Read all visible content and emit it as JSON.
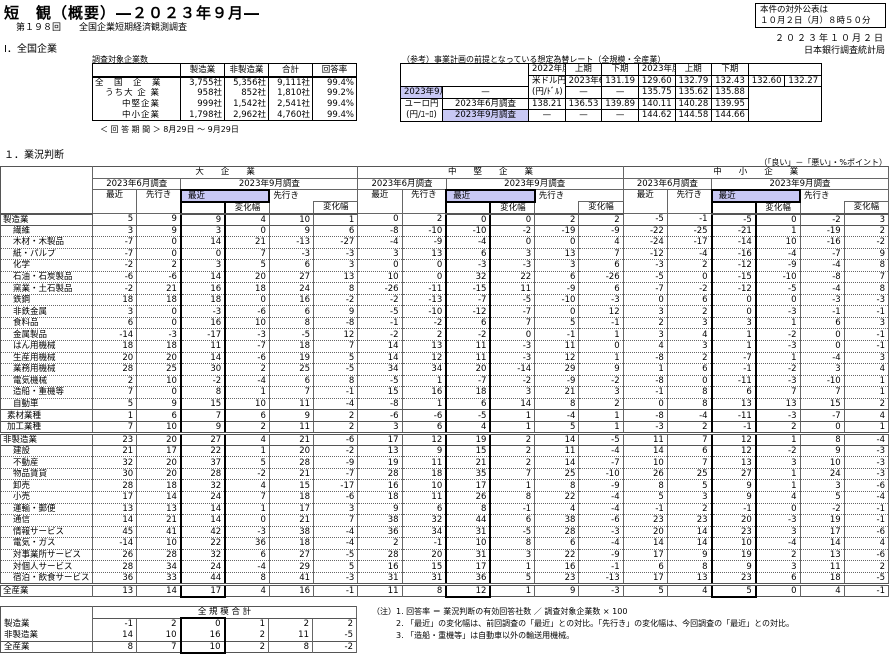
{
  "header": {
    "title": "短　観（概要）―２０２３年９月―",
    "subtitle": "第１９８回　　全国企業短期経済観測調査",
    "release_line1": "本件の対外公表は",
    "release_line2": "１０月２日（月）８時５０分",
    "date": "２０２３年１０月２日",
    "bureau": "日本銀行調査統計局"
  },
  "section1": "Ⅰ．全国企業",
  "firms": {
    "label": "調査対象企業数",
    "columns": [
      "",
      "製造業",
      "非製造業",
      "合計",
      "回答率"
    ],
    "rows": [
      [
        "全　国　企　業",
        "3,755社",
        "5,356社",
        "9,111社",
        "99.4%"
      ],
      [
        "うち大 企 業",
        "958社",
        "852社",
        "1,810社",
        "99.2%"
      ],
      [
        "中堅企業",
        "999社",
        "1,542社",
        "2,541社",
        "99.4%"
      ],
      [
        "中小企業",
        "1,798社",
        "2,962社",
        "4,760社",
        "99.4%"
      ]
    ],
    "period": "＜ 回 答 期 間 ＞ 8月29日 ～ 9月29日"
  },
  "fx": {
    "label": "（参考）事業計画の前提となっている想定為替レート（全規模・全産業）",
    "year1": "2022年度",
    "year2": "2023年度",
    "half1": "上期",
    "half2": "下期",
    "rows": [
      {
        "currency": "米ドル円",
        "unit": "(円/ﾄﾞﾙ)",
        "survey": "2023年6月調査",
        "values": [
          "131.19",
          "129.60",
          "132.79",
          "132.43",
          "132.60",
          "132.27"
        ]
      },
      {
        "survey": "2023年9月調査",
        "values": [
          "—",
          "—",
          "—",
          "135.75",
          "135.62",
          "135.88"
        ]
      },
      {
        "currency": "ユーロ円",
        "unit": "(円/ﾕｰﾛ)",
        "survey": "2023年6月調査",
        "values": [
          "138.21",
          "136.53",
          "139.89",
          "140.11",
          "140.28",
          "139.95"
        ]
      },
      {
        "survey": "2023年9月調査",
        "values": [
          "—",
          "—",
          "—",
          "144.62",
          "144.58",
          "144.66"
        ]
      }
    ]
  },
  "section2": "１．業況判断",
  "unit": "（「良い」－「悪い」・%ポイント）",
  "main": {
    "groups": [
      "大　　企　　業",
      "中　　堅　　企　　業",
      "中　　小　　企　　業"
    ],
    "surveys": [
      "2023年6月調査",
      "2023年9月調査"
    ],
    "recent": "最近",
    "forward": "先行き",
    "change": "変化幅",
    "rows": [
      {
        "label": "製造業",
        "lv": 0,
        "l": [
          5,
          9,
          9,
          4,
          10,
          1
        ],
        "m": [
          0,
          2,
          0,
          0,
          2,
          2
        ],
        "s": [
          -5,
          -1,
          -5,
          0,
          -2,
          3
        ]
      },
      {
        "label": "繊維",
        "lv": 2,
        "l": [
          3,
          9,
          3,
          0,
          9,
          6
        ],
        "m": [
          -8,
          -10,
          -10,
          -2,
          -19,
          -9
        ],
        "s": [
          -22,
          -25,
          -21,
          1,
          -19,
          2
        ]
      },
      {
        "label": "木材・木製品",
        "lv": 2,
        "l": [
          -7,
          0,
          14,
          21,
          -13,
          -27
        ],
        "m": [
          -4,
          -9,
          -4,
          0,
          0,
          4
        ],
        "s": [
          -24,
          -17,
          -14,
          10,
          -16,
          -2
        ]
      },
      {
        "label": "紙・パルプ",
        "lv": 2,
        "l": [
          -7,
          0,
          0,
          7,
          -3,
          -3
        ],
        "m": [
          3,
          13,
          6,
          3,
          13,
          7
        ],
        "s": [
          -12,
          -4,
          -16,
          -4,
          -7,
          9
        ]
      },
      {
        "label": "化学",
        "lv": 2,
        "l": [
          -2,
          2,
          3,
          5,
          6,
          3
        ],
        "m": [
          0,
          0,
          -3,
          -3,
          3,
          6
        ],
        "s": [
          -3,
          2,
          -12,
          -9,
          -4,
          8
        ]
      },
      {
        "label": "石油・石炭製品",
        "lv": 2,
        "l": [
          -6,
          -6,
          14,
          20,
          27,
          13
        ],
        "m": [
          10,
          0,
          32,
          22,
          6,
          -26
        ],
        "s": [
          -5,
          0,
          -15,
          -10,
          -8,
          7
        ]
      },
      {
        "label": "窯業・土石製品",
        "lv": 2,
        "l": [
          -2,
          21,
          16,
          18,
          24,
          8
        ],
        "m": [
          -26,
          -11,
          -15,
          11,
          -9,
          6
        ],
        "s": [
          -7,
          -2,
          -12,
          -5,
          -4,
          8
        ]
      },
      {
        "label": "鉄鋼",
        "lv": 2,
        "l": [
          18,
          18,
          18,
          0,
          16,
          -2
        ],
        "m": [
          -2,
          -13,
          -7,
          -5,
          -10,
          -3
        ],
        "s": [
          0,
          6,
          0,
          0,
          -3,
          -3
        ]
      },
      {
        "label": "非鉄金属",
        "lv": 2,
        "l": [
          3,
          0,
          -3,
          -6,
          6,
          9
        ],
        "m": [
          -5,
          -10,
          -12,
          -7,
          0,
          12
        ],
        "s": [
          3,
          2,
          0,
          -3,
          -1,
          -1
        ]
      },
      {
        "label": "食料品",
        "lv": 2,
        "l": [
          6,
          0,
          16,
          10,
          8,
          -8
        ],
        "m": [
          -1,
          -2,
          6,
          7,
          5,
          -1
        ],
        "s": [
          2,
          3,
          3,
          1,
          6,
          3
        ]
      },
      {
        "label": "金属製品",
        "lv": 2,
        "l": [
          -14,
          -3,
          -17,
          -3,
          -5,
          12
        ],
        "m": [
          -2,
          2,
          -2,
          0,
          -1,
          1
        ],
        "s": [
          3,
          4,
          1,
          -2,
          0,
          -1
        ]
      },
      {
        "label": "はん用機械",
        "lv": 2,
        "l": [
          18,
          18,
          11,
          -7,
          18,
          7
        ],
        "m": [
          14,
          13,
          11,
          -3,
          11,
          0
        ],
        "s": [
          4,
          3,
          1,
          -3,
          0,
          -1
        ]
      },
      {
        "label": "生産用機械",
        "lv": 2,
        "l": [
          20,
          20,
          14,
          -6,
          19,
          5
        ],
        "m": [
          14,
          12,
          11,
          -3,
          12,
          1
        ],
        "s": [
          -8,
          2,
          -7,
          1,
          -4,
          3
        ]
      },
      {
        "label": "業務用機械",
        "lv": 2,
        "l": [
          28,
          25,
          30,
          2,
          25,
          -5
        ],
        "m": [
          34,
          34,
          20,
          -14,
          29,
          9
        ],
        "s": [
          1,
          6,
          -1,
          -2,
          3,
          4
        ]
      },
      {
        "label": "電気機械",
        "lv": 2,
        "l": [
          2,
          10,
          -2,
          -4,
          6,
          8
        ],
        "m": [
          -5,
          1,
          -7,
          -2,
          -9,
          -2
        ],
        "s": [
          -8,
          0,
          -11,
          -3,
          -10,
          1
        ]
      },
      {
        "label": "造船・重機等",
        "lv": 2,
        "l": [
          7,
          0,
          8,
          1,
          7,
          -1
        ],
        "m": [
          15,
          16,
          18,
          3,
          21,
          3
        ],
        "s": [
          -1,
          8,
          6,
          7,
          7,
          1
        ]
      },
      {
        "label": "自動車",
        "lv": 2,
        "l": [
          5,
          9,
          15,
          10,
          11,
          -4
        ],
        "m": [
          -8,
          1,
          6,
          14,
          8,
          2
        ],
        "s": [
          0,
          8,
          13,
          13,
          15,
          2
        ]
      },
      {
        "label": "素材業種",
        "lv": 1,
        "l": [
          1,
          6,
          7,
          6,
          9,
          2
        ],
        "m": [
          -6,
          -6,
          -5,
          1,
          -4,
          1
        ],
        "s": [
          -8,
          -4,
          -11,
          -3,
          -7,
          4
        ]
      },
      {
        "label": "加工業種",
        "lv": 1,
        "l": [
          7,
          10,
          9,
          2,
          11,
          2
        ],
        "m": [
          3,
          6,
          4,
          1,
          5,
          1
        ],
        "s": [
          -3,
          2,
          -1,
          2,
          0,
          1
        ]
      },
      {
        "label": "非製造業",
        "lv": 0,
        "l": [
          23,
          20,
          27,
          4,
          21,
          -6
        ],
        "m": [
          17,
          12,
          19,
          2,
          14,
          -5
        ],
        "s": [
          11,
          7,
          12,
          1,
          8,
          -4
        ]
      },
      {
        "label": "建設",
        "lv": 2,
        "l": [
          21,
          17,
          22,
          1,
          20,
          -2
        ],
        "m": [
          13,
          9,
          15,
          2,
          11,
          -4
        ],
        "s": [
          14,
          6,
          12,
          -2,
          9,
          -3
        ]
      },
      {
        "label": "不動産",
        "lv": 2,
        "l": [
          32,
          20,
          37,
          5,
          28,
          -9
        ],
        "m": [
          19,
          11,
          21,
          2,
          14,
          -7
        ],
        "s": [
          10,
          7,
          13,
          3,
          10,
          -3
        ]
      },
      {
        "label": "物品賃貸",
        "lv": 2,
        "l": [
          30,
          20,
          28,
          -2,
          21,
          -7
        ],
        "m": [
          28,
          18,
          35,
          7,
          25,
          -10
        ],
        "s": [
          26,
          25,
          27,
          1,
          24,
          -3
        ]
      },
      {
        "label": "卸売",
        "lv": 2,
        "l": [
          28,
          18,
          32,
          4,
          15,
          -17
        ],
        "m": [
          16,
          10,
          17,
          1,
          8,
          -9
        ],
        "s": [
          8,
          5,
          9,
          1,
          3,
          -6
        ]
      },
      {
        "label": "小売",
        "lv": 2,
        "l": [
          17,
          14,
          24,
          7,
          18,
          -6
        ],
        "m": [
          18,
          11,
          26,
          8,
          22,
          -4
        ],
        "s": [
          5,
          3,
          9,
          4,
          5,
          -4
        ]
      },
      {
        "label": "運輸・郵便",
        "lv": 2,
        "l": [
          13,
          13,
          14,
          1,
          17,
          3
        ],
        "m": [
          9,
          6,
          8,
          -1,
          4,
          -4
        ],
        "s": [
          -1,
          2,
          -1,
          0,
          -2,
          -1
        ]
      },
      {
        "label": "通信",
        "lv": 2,
        "l": [
          14,
          21,
          14,
          0,
          21,
          7
        ],
        "m": [
          38,
          32,
          44,
          6,
          38,
          -6
        ],
        "s": [
          23,
          23,
          20,
          -3,
          19,
          -1
        ]
      },
      {
        "label": "情報サービス",
        "lv": 2,
        "l": [
          45,
          41,
          42,
          -3,
          38,
          -4
        ],
        "m": [
          36,
          34,
          31,
          -5,
          28,
          -3
        ],
        "s": [
          20,
          14,
          23,
          3,
          17,
          -6
        ]
      },
      {
        "label": "電気・ガス",
        "lv": 2,
        "l": [
          -14,
          10,
          22,
          36,
          18,
          -4
        ],
        "m": [
          2,
          -1,
          10,
          8,
          6,
          -4
        ],
        "s": [
          14,
          14,
          10,
          -4,
          14,
          4
        ]
      },
      {
        "label": "対事業所サービス",
        "lv": 2,
        "l": [
          26,
          28,
          32,
          6,
          27,
          -5
        ],
        "m": [
          28,
          20,
          31,
          3,
          22,
          -9
        ],
        "s": [
          17,
          9,
          19,
          2,
          13,
          -6
        ]
      },
      {
        "label": "対個人サービス",
        "lv": 2,
        "l": [
          28,
          34,
          24,
          -4,
          29,
          5
        ],
        "m": [
          16,
          15,
          17,
          1,
          16,
          -1
        ],
        "s": [
          6,
          8,
          9,
          3,
          11,
          2
        ]
      },
      {
        "label": "宿泊・飲食サービス",
        "lv": 2,
        "l": [
          36,
          33,
          44,
          8,
          41,
          -3
        ],
        "m": [
          31,
          31,
          36,
          5,
          23,
          -13
        ],
        "s": [
          17,
          13,
          23,
          6,
          18,
          -5
        ]
      },
      {
        "label": "全産業",
        "lv": 0,
        "l": [
          13,
          14,
          17,
          4,
          16,
          -1
        ],
        "m": [
          11,
          8,
          12,
          1,
          9,
          -3
        ],
        "s": [
          5,
          4,
          5,
          0,
          4,
          -1
        ]
      }
    ]
  },
  "total": {
    "title": "全 規 模 合 計",
    "rows": [
      {
        "label": "製造業",
        "values": [
          -1,
          2,
          0,
          1,
          2,
          2
        ]
      },
      {
        "label": "非製造業",
        "values": [
          14,
          10,
          16,
          2,
          11,
          -5
        ]
      },
      {
        "label": "全産業",
        "values": [
          8,
          7,
          10,
          2,
          8,
          -2
        ]
      }
    ]
  },
  "notes": [
    "（注）1.  回答率 ＝ 業況判断の有効回答社数 ／ 調査対象企業数 × 100",
    "2.  「最近」の変化幅は、前回調査の「最近」との対比。「先行き」の変化幅は、今回調査の「最近」との対比。",
    "3.  「造船・重機等」は自動車以外の輸送用機械。"
  ]
}
